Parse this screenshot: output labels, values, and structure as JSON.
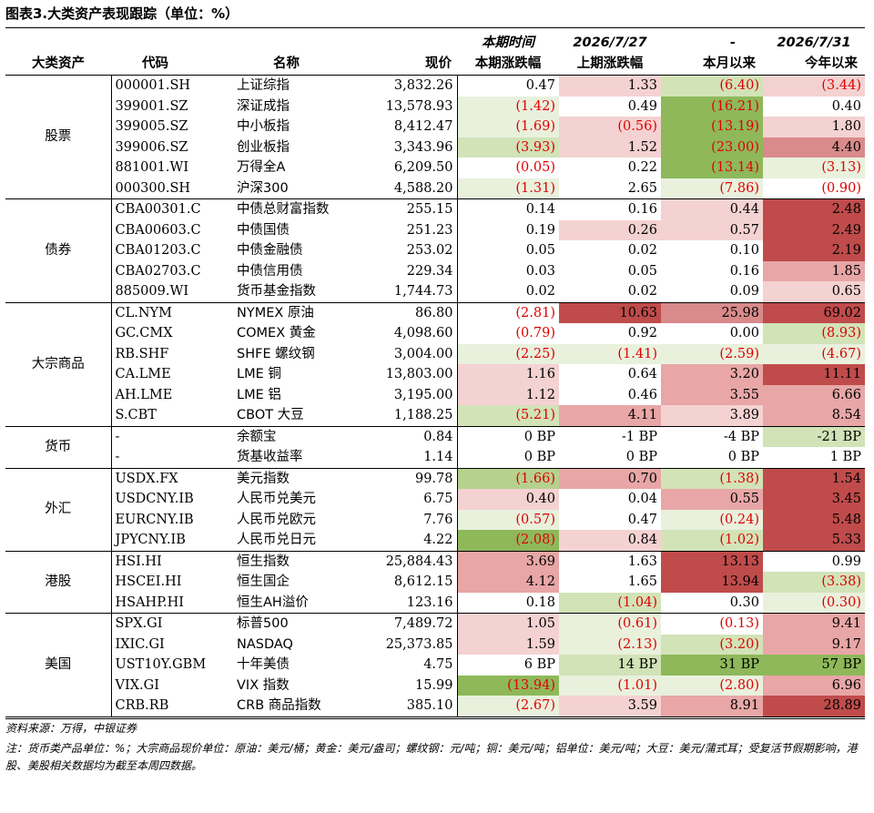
{
  "title": "图表3.大类资产表现跟踪（单位：%）",
  "header": {
    "row1": [
      "",
      "",
      "",
      "",
      "本期时间",
      "2026/7/27",
      "-",
      "2026/7/31"
    ],
    "row2": [
      "大类资产",
      "代码",
      "名称",
      "现价",
      "本期涨跌幅",
      "上期涨跌幅",
      "本月以来",
      "今年以来"
    ]
  },
  "groups": [
    {
      "name": "股票",
      "rows": [
        {
          "code": "000001.SH",
          "name": "上证综指",
          "price": "3,832.26",
          "vals": [
            "0.47",
            "1.33",
            "(6.40)",
            "(3.44)"
          ],
          "shade": [
            "c0",
            "r1",
            "g2",
            "r1"
          ]
        },
        {
          "code": "399001.SZ",
          "name": "深证成指",
          "price": "13,578.93",
          "vals": [
            "(1.42)",
            "0.49",
            "(16.21)",
            "0.40"
          ],
          "shade": [
            "g1",
            "c0",
            "g4",
            "c0"
          ]
        },
        {
          "code": "399005.SZ",
          "name": "中小板指",
          "price": "8,412.47",
          "vals": [
            "(1.69)",
            "(0.56)",
            "(13.19)",
            "1.80"
          ],
          "shade": [
            "g1",
            "r1",
            "g4",
            "r1"
          ]
        },
        {
          "code": "399006.SZ",
          "name": "创业板指",
          "price": "3,343.96",
          "vals": [
            "(3.93)",
            "1.52",
            "(23.00)",
            "4.40"
          ],
          "shade": [
            "g2",
            "r1",
            "g4",
            "r3"
          ]
        },
        {
          "code": "881001.WI",
          "name": "万得全A",
          "price": "6,209.50",
          "vals": [
            "(0.05)",
            "0.22",
            "(13.14)",
            "(3.13)"
          ],
          "shade": [
            "c0",
            "c0",
            "g4",
            "g1"
          ]
        },
        {
          "code": "000300.SH",
          "name": "沪深300",
          "price": "4,588.20",
          "vals": [
            "(1.31)",
            "2.65",
            "(7.86)",
            "(0.90)"
          ],
          "shade": [
            "g1",
            "c0",
            "g1",
            "c0"
          ]
        }
      ]
    },
    {
      "name": "债券",
      "rows": [
        {
          "code": "CBA00301.C",
          "name": "中债总财富指数",
          "price": "255.15",
          "vals": [
            "0.14",
            "0.16",
            "0.44",
            "2.48"
          ],
          "shade": [
            "c0",
            "c0",
            "r1",
            "r4"
          ]
        },
        {
          "code": "CBA00603.C",
          "name": "中债国债",
          "price": "251.23",
          "vals": [
            "0.19",
            "0.26",
            "0.57",
            "2.49"
          ],
          "shade": [
            "c0",
            "r1",
            "r1",
            "r4"
          ]
        },
        {
          "code": "CBA01203.C",
          "name": "中债金融债",
          "price": "253.02",
          "vals": [
            "0.05",
            "0.02",
            "0.10",
            "2.19"
          ],
          "shade": [
            "c0",
            "c0",
            "c0",
            "r4"
          ]
        },
        {
          "code": "CBA02703.C",
          "name": "中债信用债",
          "price": "229.34",
          "vals": [
            "0.03",
            "0.05",
            "0.16",
            "1.85"
          ],
          "shade": [
            "c0",
            "c0",
            "c0",
            "r2"
          ]
        },
        {
          "code": "885009.WI",
          "name": "货币基金指数",
          "price": "1,744.73",
          "vals": [
            "0.02",
            "0.02",
            "0.09",
            "0.65"
          ],
          "shade": [
            "c0",
            "c0",
            "c0",
            "r1"
          ]
        }
      ]
    },
    {
      "name": "大宗商品",
      "rows": [
        {
          "code": "CL.NYM",
          "name": "NYMEX 原油",
          "price": "86.80",
          "vals": [
            "(2.81)",
            "10.63",
            "25.98",
            "69.02"
          ],
          "shade": [
            "c0",
            "r4",
            "r3",
            "r4"
          ]
        },
        {
          "code": "GC.CMX",
          "name": "COMEX 黄金",
          "price": "4,098.60",
          "vals": [
            "(0.79)",
            "0.92",
            "0.00",
            "(8.93)"
          ],
          "shade": [
            "c0",
            "c0",
            "c0",
            "g2"
          ]
        },
        {
          "code": "RB.SHF",
          "name": "SHFE 螺纹钢",
          "price": "3,004.00",
          "vals": [
            "(2.25)",
            "(1.41)",
            "(2.59)",
            "(4.67)"
          ],
          "shade": [
            "g1",
            "g1",
            "g1",
            "g1"
          ]
        },
        {
          "code": "CA.LME",
          "name": "LME 铜",
          "price": "13,803.00",
          "vals": [
            "1.16",
            "0.64",
            "3.20",
            "11.11"
          ],
          "shade": [
            "r1",
            "c0",
            "r2",
            "r4"
          ]
        },
        {
          "code": "AH.LME",
          "name": "LME 铝",
          "price": "3,195.00",
          "vals": [
            "1.12",
            "0.46",
            "3.55",
            "6.66"
          ],
          "shade": [
            "r1",
            "c0",
            "r2",
            "r2"
          ]
        },
        {
          "code": "S.CBT",
          "name": "CBOT 大豆",
          "price": "1,188.25",
          "vals": [
            "(5.21)",
            "4.11",
            "3.89",
            "8.54"
          ],
          "shade": [
            "g2",
            "r2",
            "r1",
            "r2"
          ]
        }
      ]
    },
    {
      "name": "货币",
      "rows": [
        {
          "code": "-",
          "name": "余额宝",
          "price": "0.84",
          "vals": [
            "0 BP",
            "-1 BP",
            "-4 BP",
            "-21 BP"
          ],
          "shade": [
            "c0",
            "c0",
            "c0",
            "g2"
          ]
        },
        {
          "code": "-",
          "name": "货基收益率",
          "price": "1.14",
          "vals": [
            "0 BP",
            "0 BP",
            "0 BP",
            "1 BP"
          ],
          "shade": [
            "c0",
            "c0",
            "c0",
            "c0"
          ]
        }
      ]
    },
    {
      "name": "外汇",
      "rows": [
        {
          "code": "USDX.FX",
          "name": "美元指数",
          "price": "99.78",
          "vals": [
            "(1.66)",
            "0.70",
            "(1.38)",
            "1.54"
          ],
          "shade": [
            "g3",
            "r2",
            "g2",
            "r4"
          ]
        },
        {
          "code": "USDCNY.IB",
          "name": "人民币兑美元",
          "price": "6.75",
          "vals": [
            "0.40",
            "0.04",
            "0.55",
            "3.45"
          ],
          "shade": [
            "r1",
            "c0",
            "r2",
            "r4"
          ]
        },
        {
          "code": "EURCNY.IB",
          "name": "人民币兑欧元",
          "price": "7.76",
          "vals": [
            "(0.57)",
            "0.47",
            "(0.24)",
            "5.48"
          ],
          "shade": [
            "g1",
            "c0",
            "g1",
            "r4"
          ]
        },
        {
          "code": "JPYCNY.IB",
          "name": "人民币兑日元",
          "price": "4.22",
          "vals": [
            "(2.08)",
            "0.84",
            "(1.02)",
            "5.33"
          ],
          "shade": [
            "g4",
            "r1",
            "g2",
            "r4"
          ]
        }
      ]
    },
    {
      "name": "港股",
      "rows": [
        {
          "code": "HSI.HI",
          "name": "恒生指数",
          "price": "25,884.43",
          "vals": [
            "3.69",
            "1.63",
            "13.13",
            "0.99"
          ],
          "shade": [
            "r2",
            "c0",
            "r4",
            "c0"
          ]
        },
        {
          "code": "HSCEI.HI",
          "name": "恒生国企",
          "price": "8,612.15",
          "vals": [
            "4.12",
            "1.65",
            "13.94",
            "(3.38)"
          ],
          "shade": [
            "r2",
            "c0",
            "r4",
            "g2"
          ]
        },
        {
          "code": "HSAHP.HI",
          "name": "恒生AH溢价",
          "price": "123.16",
          "vals": [
            "0.18",
            "(1.04)",
            "0.30",
            "(0.30)"
          ],
          "shade": [
            "c0",
            "g2",
            "c0",
            "g1"
          ]
        }
      ]
    },
    {
      "name": "美国",
      "rows": [
        {
          "code": "SPX.GI",
          "name": "标普500",
          "price": "7,489.72",
          "vals": [
            "1.05",
            "(0.61)",
            "(0.13)",
            "9.41"
          ],
          "shade": [
            "r1",
            "g1",
            "c0",
            "r2"
          ]
        },
        {
          "code": "IXIC.GI",
          "name": "NASDAQ",
          "price": "25,373.85",
          "vals": [
            "1.59",
            "(2.13)",
            "(3.20)",
            "9.17"
          ],
          "shade": [
            "r1",
            "g1",
            "g2",
            "r2"
          ]
        },
        {
          "code": "UST10Y.GBM",
          "name": "十年美债",
          "price": "4.75",
          "vals": [
            "6 BP",
            "14 BP",
            "31 BP",
            "57 BP"
          ],
          "shade": [
            "c0",
            "g2",
            "g4",
            "g4"
          ]
        },
        {
          "code": "VIX.GI",
          "name": "VIX 指数",
          "price": "15.99",
          "vals": [
            "(13.94)",
            "(1.01)",
            "(2.80)",
            "6.96"
          ],
          "shade": [
            "g4",
            "g1",
            "g1",
            "r2"
          ]
        },
        {
          "code": "CRB.RB",
          "name": "CRB 商品指数",
          "price": "385.10",
          "vals": [
            "(2.67)",
            "3.59",
            "8.91",
            "28.89"
          ],
          "shade": [
            "g1",
            "r1",
            "r2",
            "r4"
          ]
        }
      ]
    }
  ],
  "source": "资料来源：万得，中银证券",
  "note": "注：货币类产品单位：%；大宗商品现价单位：原油：美元/桶；黄金：美元/盎司；螺纹钢：元/吨；铜：美元/吨；铝单位：美元/吨；大豆：美元/蒲式耳；受复活节假期影响，港股、美股相关数据均为截至本周四数据。"
}
